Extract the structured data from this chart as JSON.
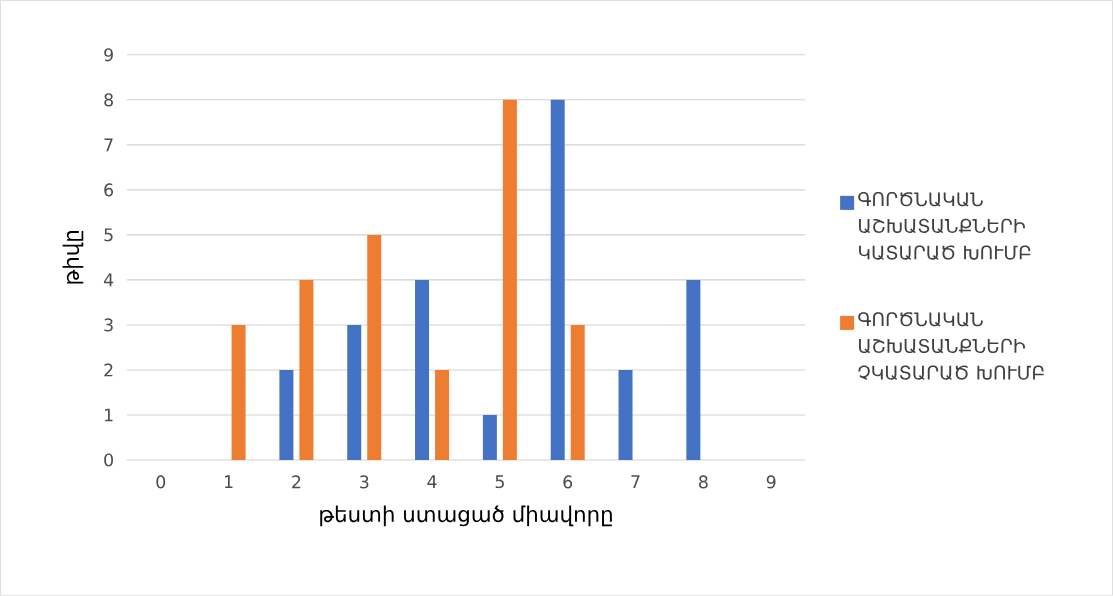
{
  "chart_data": {
    "type": "bar",
    "xlabel": "թեստի ստացած միավորը",
    "ylabel": "թիվը",
    "categories": [
      "0",
      "1",
      "2",
      "3",
      "4",
      "5",
      "6",
      "7",
      "8",
      "9"
    ],
    "series": [
      {
        "name": "ԳՈՐԾՆԱԿԱՆ ԱՇԽԱՏԱՆՔՆԵՐԻ ԿԱՏԱՐԱԾ ԽՈՒՄԲ",
        "color": "#4472c4",
        "values": [
          0,
          0,
          2,
          3,
          4,
          1,
          8,
          2,
          4,
          0
        ]
      },
      {
        "name": "ԳՈՐԾՆԱԿԱՆ ԱՇԽԱՏԱՆՔՆԵՐԻ ՉԿԱՏԱՐԱԾ ԽՈՒՄԲ",
        "color": "#ed7d31",
        "values": [
          0,
          3,
          4,
          5,
          2,
          8,
          3,
          0,
          0,
          0
        ]
      }
    ],
    "ylim": [
      0,
      9
    ],
    "yticks": [
      0,
      1,
      2,
      3,
      4,
      5,
      6,
      7,
      8,
      9
    ],
    "grid": "y",
    "legend": "right"
  }
}
